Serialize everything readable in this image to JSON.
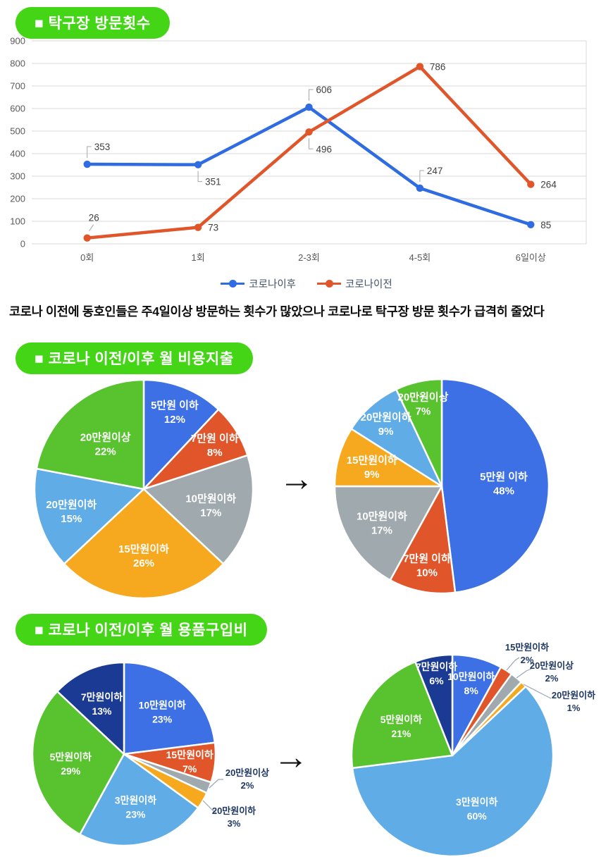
{
  "page": {
    "background": "#ffffff",
    "accent_green": "#44d616"
  },
  "sections": {
    "visits": {
      "title": "■ 탁구장 방문횟수",
      "caption": "코로나 이전에 동호인들은 주4일이상 방문하는 횟수가 많았으나 코로나로 탁구장 방문 횟수가 급격히 줄었다"
    },
    "spend": {
      "title": "■ 코로나 이전/이후 월 비용지출",
      "arrow": "→"
    },
    "goods": {
      "title": "■ 코로나 이전/이후 월 용품구입비",
      "arrow": "→"
    }
  },
  "chart_data": [
    {
      "id": "visits-line",
      "type": "line",
      "categories": [
        "0회",
        "1회",
        "2-3회",
        "4-5회",
        "6일이상"
      ],
      "series": [
        {
          "name": "코로나이후",
          "color": "#2f6be1",
          "values": [
            353,
            351,
            606,
            247,
            85
          ]
        },
        {
          "name": "코로나이전",
          "color": "#e0562a",
          "values": [
            26,
            73,
            496,
            786,
            264
          ]
        }
      ],
      "ylim": [
        0,
        900
      ],
      "ytick_step": 100,
      "grid": true,
      "legend_position": "bottom"
    },
    {
      "id": "spend-before",
      "type": "pie",
      "slices": [
        {
          "label": "5만원 이하",
          "pct": 12,
          "color": "#3c70e4"
        },
        {
          "label": "7만원 이하",
          "pct": 8,
          "color": "#e0562a"
        },
        {
          "label": "10만원이하",
          "pct": 17,
          "color": "#9fa9ae"
        },
        {
          "label": "15만원이하",
          "pct": 26,
          "color": "#f6a81f"
        },
        {
          "label": "20만원이하",
          "pct": 15,
          "color": "#5face6"
        },
        {
          "label": "20만원이상",
          "pct": 22,
          "color": "#58c22f"
        }
      ]
    },
    {
      "id": "spend-after",
      "type": "pie",
      "slices": [
        {
          "label": "5만원 이하",
          "pct": 48,
          "color": "#3c70e4"
        },
        {
          "label": "7만원 이하",
          "pct": 10,
          "color": "#e0562a"
        },
        {
          "label": "10만원이하",
          "pct": 17,
          "color": "#9fa9ae"
        },
        {
          "label": "15만원이하",
          "pct": 9,
          "color": "#f6a81f"
        },
        {
          "label": "20만원이하",
          "pct": 9,
          "color": "#5face6"
        },
        {
          "label": "20만원이상",
          "pct": 7,
          "color": "#58c22f"
        }
      ]
    },
    {
      "id": "goods-before",
      "type": "pie",
      "slices": [
        {
          "label": "10만원이하",
          "pct": 23,
          "color": "#3c70e4"
        },
        {
          "label": "15만원이하",
          "pct": 7,
          "color": "#e0562a"
        },
        {
          "label": "20만원이상",
          "pct": 2,
          "color": "#9fa9ae",
          "label_outside": true
        },
        {
          "label": "20만원이하",
          "pct": 3,
          "color": "#f6a81f",
          "label_outside": true
        },
        {
          "label": "3만원이하",
          "pct": 23,
          "color": "#5face6"
        },
        {
          "label": "5만원이하",
          "pct": 29,
          "color": "#58c22f"
        },
        {
          "label": "7만원이하",
          "pct": 13,
          "color": "#1a3a94"
        }
      ]
    },
    {
      "id": "goods-after",
      "type": "pie",
      "slices": [
        {
          "label": "10만원이하",
          "pct": 8,
          "color": "#3c70e4"
        },
        {
          "label": "15만원이하",
          "pct": 2,
          "color": "#e0562a",
          "label_outside": true
        },
        {
          "label": "20만원이상",
          "pct": 2,
          "color": "#9fa9ae",
          "label_outside": true
        },
        {
          "label": "20만원이하",
          "pct": 1,
          "color": "#f6a81f",
          "label_outside": true
        },
        {
          "label": "3만원이하",
          "pct": 60,
          "color": "#5face6"
        },
        {
          "label": "5만원이하",
          "pct": 21,
          "color": "#58c22f"
        },
        {
          "label": "7만원이하",
          "pct": 6,
          "color": "#1a3a94"
        }
      ]
    }
  ]
}
